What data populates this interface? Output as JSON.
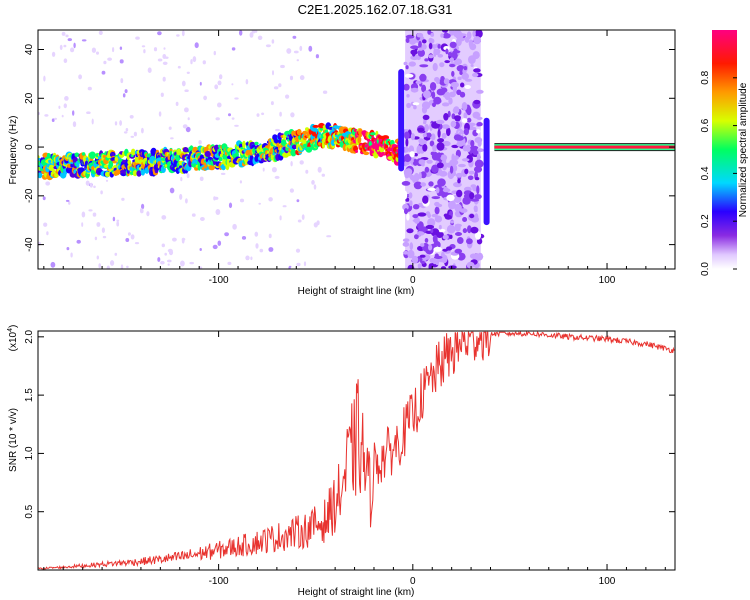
{
  "title": "C2E1.2025.162.07.18.G31",
  "chart_data": [
    {
      "type": "heatmap",
      "xlabel": "Height of straight line (km)",
      "ylabel": "Frequency (Hz)",
      "xlim": [
        -193,
        135
      ],
      "ylim": [
        -50,
        48
      ],
      "xticks": [
        -100,
        0,
        100
      ],
      "yticks": [
        -40,
        -20,
        0,
        20,
        40
      ],
      "colorbar": {
        "label": "Normalized spectral amplitude",
        "range": [
          0,
          1
        ],
        "ticks": [
          "0.0",
          "0.2",
          "0.4",
          "0.6",
          "0.8"
        ]
      },
      "ridge": {
        "x": [
          -193,
          -160,
          -130,
          -100,
          -80,
          -60,
          -45,
          -38,
          -25,
          -12,
          -8,
          42,
          135
        ],
        "y": [
          -8,
          -7,
          -6,
          -4,
          -2,
          2,
          5,
          4,
          2,
          0,
          -2,
          0,
          0
        ]
      },
      "noise_band": [
        -4,
        35
      ],
      "tone_line": {
        "x_start": 42,
        "x_end": 135,
        "frequency": 0
      }
    },
    {
      "type": "line",
      "xlabel": "Height of straight line (km)",
      "ylabel": "SNR (10 * v/v)",
      "y_scale_label": "(x10",
      "y_scale_exp": "4",
      "xlim": [
        -193,
        135
      ],
      "ylim": [
        0,
        2.05
      ],
      "xticks": [
        -100,
        0,
        100
      ],
      "yticks": [
        0.5,
        1.0,
        1.5,
        2.0
      ],
      "ytick_labels": [
        "0.5",
        "1.0",
        "1.5",
        "2.0"
      ],
      "series": [
        {
          "color": "#e8332f",
          "x": [
            -193,
            -180,
            -160,
            -140,
            -120,
            -100,
            -85,
            -70,
            -55,
            -45,
            -38,
            -33,
            -28,
            -22,
            -20,
            -15,
            -8,
            0,
            5,
            10,
            15,
            25,
            35,
            45,
            60,
            80,
            100,
            120,
            135
          ],
          "y": [
            0.01,
            0.02,
            0.04,
            0.06,
            0.09,
            0.14,
            0.18,
            0.23,
            0.28,
            0.35,
            0.52,
            0.75,
            0.95,
            0.55,
            0.9,
            0.97,
            1.08,
            1.32,
            1.5,
            1.65,
            1.78,
            1.95,
            2.02,
            2.03,
            2.03,
            2.0,
            1.98,
            1.94,
            1.88
          ]
        }
      ]
    }
  ]
}
